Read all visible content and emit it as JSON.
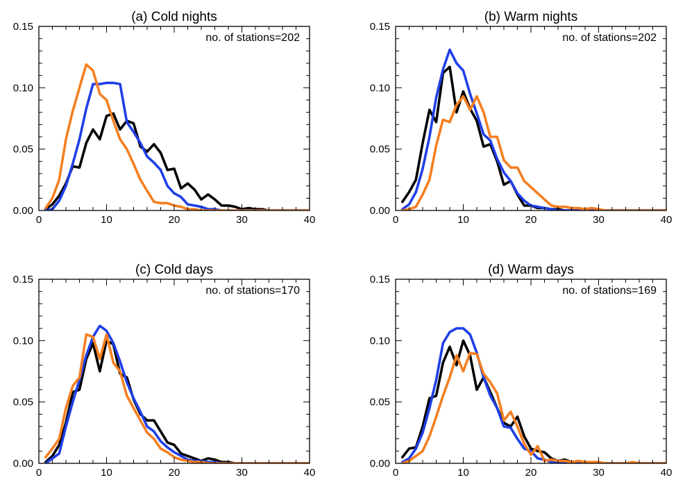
{
  "colors": {
    "black": "#000000",
    "blue": "#1f3fe6",
    "orange": "#f57f20"
  },
  "chart_data": [
    {
      "type": "line",
      "title": "(a) Cold nights",
      "annotation": "no. of stations=202",
      "xlim": [
        0,
        40
      ],
      "ylim": [
        0,
        0.15
      ],
      "xticks": [
        0,
        10,
        20,
        30,
        40
      ],
      "yticks": [
        0.0,
        0.05,
        0.1,
        0.15
      ],
      "ytick_labels": [
        "0.00",
        "0.05",
        "0.10",
        "0.15"
      ],
      "series": [
        {
          "color": "#000000",
          "x": [
            1,
            2,
            3,
            4,
            5,
            6,
            7,
            8,
            9,
            10,
            11,
            12,
            13,
            14,
            15,
            16,
            17,
            18,
            19,
            20,
            21,
            22,
            23,
            24,
            25,
            26,
            27,
            28,
            29,
            30,
            31,
            32,
            33,
            34,
            35,
            36,
            37,
            38,
            39,
            40
          ],
          "y": [
            0.001,
            0.005,
            0.012,
            0.022,
            0.036,
            0.035,
            0.055,
            0.066,
            0.058,
            0.077,
            0.079,
            0.066,
            0.073,
            0.071,
            0.052,
            0.048,
            0.054,
            0.047,
            0.033,
            0.034,
            0.018,
            0.022,
            0.017,
            0.009,
            0.013,
            0.009,
            0.004,
            0.004,
            0.003,
            0.001,
            0.002,
            0.001,
            0.001,
            0,
            0,
            0,
            0,
            0,
            0,
            0
          ]
        },
        {
          "color": "#1f3fe6",
          "x": [
            1,
            2,
            3,
            4,
            5,
            6,
            7,
            8,
            9,
            10,
            11,
            12,
            13,
            14,
            15,
            16,
            17,
            18,
            19,
            20,
            21,
            22,
            23,
            24,
            25,
            26,
            27,
            28,
            29,
            30,
            31,
            32,
            33,
            34,
            35,
            36,
            37,
            38,
            39,
            40
          ],
          "y": [
            0.0,
            0.001,
            0.008,
            0.02,
            0.038,
            0.058,
            0.083,
            0.103,
            0.103,
            0.104,
            0.104,
            0.103,
            0.072,
            0.064,
            0.055,
            0.044,
            0.039,
            0.033,
            0.02,
            0.014,
            0.011,
            0.005,
            0.004,
            0.003,
            0.001,
            0.001,
            0,
            0,
            0,
            0,
            0,
            0,
            0,
            0,
            0,
            0,
            0,
            0,
            0,
            0
          ]
        },
        {
          "color": "#f57f20",
          "x": [
            1,
            2,
            3,
            4,
            5,
            6,
            7,
            8,
            9,
            10,
            11,
            12,
            13,
            14,
            15,
            16,
            17,
            18,
            19,
            20,
            21,
            22,
            23,
            24,
            25,
            26,
            27,
            28,
            29,
            30,
            31,
            32,
            33,
            34,
            35,
            36,
            37,
            38,
            39,
            40
          ],
          "y": [
            0.002,
            0.01,
            0.025,
            0.058,
            0.081,
            0.1,
            0.119,
            0.114,
            0.095,
            0.09,
            0.073,
            0.058,
            0.05,
            0.038,
            0.025,
            0.016,
            0.007,
            0.006,
            0.006,
            0.004,
            0.003,
            0.001,
            0.001,
            0,
            0,
            0,
            0,
            0,
            0,
            0,
            0,
            0,
            0,
            0,
            0,
            0,
            0,
            0,
            0,
            0
          ]
        }
      ]
    },
    {
      "type": "line",
      "title": "(b) Warm nights",
      "annotation": "no. of stations=202",
      "xlim": [
        0,
        40
      ],
      "ylim": [
        0,
        0.15
      ],
      "xticks": [
        0,
        10,
        20,
        30,
        40
      ],
      "yticks": [
        0.0,
        0.05,
        0.1,
        0.15
      ],
      "ytick_labels": [
        "0.00",
        "0.05",
        "0.10",
        "0.15"
      ],
      "series": [
        {
          "color": "#000000",
          "x": [
            1,
            2,
            3,
            4,
            5,
            6,
            7,
            8,
            9,
            10,
            11,
            12,
            13,
            14,
            15,
            16,
            17,
            18,
            19,
            20,
            21,
            22,
            23,
            24,
            25,
            26,
            27,
            28,
            29,
            30,
            31,
            32,
            33,
            34,
            35,
            36,
            37,
            38,
            39,
            40
          ],
          "y": [
            0.007,
            0.015,
            0.025,
            0.055,
            0.082,
            0.072,
            0.112,
            0.117,
            0.08,
            0.097,
            0.083,
            0.073,
            0.052,
            0.054,
            0.04,
            0.021,
            0.024,
            0.013,
            0.004,
            0.004,
            0.002,
            0.002,
            0.001,
            0.001,
            0,
            0,
            0,
            0,
            0,
            0,
            0,
            0,
            0,
            0,
            0,
            0,
            0,
            0,
            0,
            0
          ]
        },
        {
          "color": "#1f3fe6",
          "x": [
            1,
            2,
            3,
            4,
            5,
            6,
            7,
            8,
            9,
            10,
            11,
            12,
            13,
            14,
            15,
            16,
            17,
            18,
            19,
            20,
            21,
            22,
            23,
            24,
            25,
            26,
            27,
            28,
            29,
            30,
            31,
            32,
            33,
            34,
            35,
            36,
            37,
            38,
            39,
            40
          ],
          "y": [
            0.001,
            0.005,
            0.015,
            0.034,
            0.06,
            0.092,
            0.115,
            0.131,
            0.12,
            0.114,
            0.095,
            0.079,
            0.062,
            0.057,
            0.042,
            0.031,
            0.024,
            0.014,
            0.008,
            0.004,
            0.003,
            0.002,
            0.001,
            0,
            0,
            0,
            0,
            0,
            0,
            0,
            0,
            0,
            0,
            0,
            0,
            0,
            0,
            0,
            0,
            0
          ]
        },
        {
          "color": "#f57f20",
          "x": [
            1,
            2,
            3,
            4,
            5,
            6,
            7,
            8,
            9,
            10,
            11,
            12,
            13,
            14,
            15,
            16,
            17,
            18,
            19,
            20,
            21,
            22,
            23,
            24,
            25,
            26,
            27,
            28,
            29,
            30,
            31,
            32,
            33,
            34,
            35,
            36,
            37,
            38,
            39,
            40
          ],
          "y": [
            0.0,
            0.001,
            0.003,
            0.013,
            0.025,
            0.053,
            0.074,
            0.072,
            0.086,
            0.093,
            0.082,
            0.093,
            0.08,
            0.06,
            0.06,
            0.041,
            0.035,
            0.035,
            0.024,
            0.019,
            0.014,
            0.009,
            0.004,
            0.003,
            0.003,
            0.002,
            0.002,
            0.001,
            0.002,
            0.001,
            0,
            0,
            0,
            0,
            0,
            0,
            0,
            0,
            0,
            0
          ]
        }
      ]
    },
    {
      "type": "line",
      "title": "(c) Cold days",
      "annotation": "no. of stations=170",
      "xlim": [
        0,
        40
      ],
      "ylim": [
        0,
        0.15
      ],
      "xticks": [
        0,
        10,
        20,
        30,
        40
      ],
      "yticks": [
        0.0,
        0.05,
        0.1,
        0.15
      ],
      "ytick_labels": [
        "0.00",
        "0.05",
        "0.10",
        "0.15"
      ],
      "series": [
        {
          "color": "#000000",
          "x": [
            1,
            2,
            3,
            4,
            5,
            6,
            7,
            8,
            9,
            10,
            11,
            12,
            13,
            14,
            15,
            16,
            17,
            18,
            19,
            20,
            21,
            22,
            23,
            24,
            25,
            26,
            27,
            28,
            29,
            30,
            31,
            32,
            33,
            34,
            35,
            36,
            37,
            38,
            39,
            40
          ],
          "y": [
            0.001,
            0.006,
            0.015,
            0.033,
            0.058,
            0.06,
            0.085,
            0.098,
            0.075,
            0.1,
            0.097,
            0.073,
            0.07,
            0.052,
            0.04,
            0.035,
            0.035,
            0.026,
            0.017,
            0.015,
            0.008,
            0.006,
            0.004,
            0.002,
            0.004,
            0.003,
            0.001,
            0.001,
            0,
            0,
            0,
            0,
            0,
            0,
            0,
            0,
            0,
            0,
            0,
            0
          ]
        },
        {
          "color": "#1f3fe6",
          "x": [
            1,
            2,
            3,
            4,
            5,
            6,
            7,
            8,
            9,
            10,
            11,
            12,
            13,
            14,
            15,
            16,
            17,
            18,
            19,
            20,
            21,
            22,
            23,
            24,
            25,
            26,
            27,
            28,
            29,
            30,
            31,
            32,
            33,
            34,
            35,
            36,
            37,
            38,
            39,
            40
          ],
          "y": [
            0.0,
            0.004,
            0.008,
            0.03,
            0.05,
            0.068,
            0.088,
            0.103,
            0.112,
            0.108,
            0.098,
            0.083,
            0.066,
            0.053,
            0.042,
            0.03,
            0.026,
            0.018,
            0.013,
            0.009,
            0.006,
            0.003,
            0.002,
            0.002,
            0.001,
            0.001,
            0,
            0,
            0,
            0,
            0,
            0,
            0,
            0,
            0,
            0,
            0,
            0,
            0,
            0
          ]
        },
        {
          "color": "#f57f20",
          "x": [
            1,
            2,
            3,
            4,
            5,
            6,
            7,
            8,
            9,
            10,
            11,
            12,
            13,
            14,
            15,
            16,
            17,
            18,
            19,
            20,
            21,
            22,
            23,
            24,
            25,
            26,
            27,
            28,
            29,
            30,
            31,
            32,
            33,
            34,
            35,
            36,
            37,
            38,
            39,
            40
          ],
          "y": [
            0.005,
            0.012,
            0.02,
            0.045,
            0.063,
            0.07,
            0.105,
            0.103,
            0.085,
            0.105,
            0.082,
            0.075,
            0.055,
            0.045,
            0.035,
            0.025,
            0.02,
            0.012,
            0.009,
            0.005,
            0.003,
            0.002,
            0.001,
            0.001,
            0,
            0,
            0,
            0,
            0,
            0,
            0,
            0,
            0,
            0,
            0,
            0,
            0,
            0,
            0,
            0
          ]
        }
      ]
    },
    {
      "type": "line",
      "title": "(d) Warm days",
      "annotation": "no. of stations=169",
      "xlim": [
        0,
        40
      ],
      "ylim": [
        0,
        0.15
      ],
      "xticks": [
        0,
        10,
        20,
        30,
        40
      ],
      "yticks": [
        0.0,
        0.05,
        0.1,
        0.15
      ],
      "ytick_labels": [
        "0.00",
        "0.05",
        "0.10",
        "0.15"
      ],
      "series": [
        {
          "color": "#000000",
          "x": [
            1,
            2,
            3,
            4,
            5,
            6,
            7,
            8,
            9,
            10,
            11,
            12,
            13,
            14,
            15,
            16,
            17,
            18,
            19,
            20,
            21,
            22,
            23,
            24,
            25,
            26,
            27,
            28,
            29,
            30,
            31,
            32,
            33,
            34,
            35,
            36,
            37,
            38,
            39,
            40
          ],
          "y": [
            0.005,
            0.012,
            0.013,
            0.03,
            0.053,
            0.055,
            0.082,
            0.095,
            0.08,
            0.1,
            0.088,
            0.06,
            0.07,
            0.058,
            0.045,
            0.033,
            0.03,
            0.038,
            0.022,
            0.012,
            0.01,
            0.009,
            0.004,
            0.002,
            0.003,
            0.001,
            0.001,
            0,
            0,
            0,
            0,
            0,
            0,
            0,
            0,
            0,
            0,
            0,
            0,
            0
          ]
        },
        {
          "color": "#1f3fe6",
          "x": [
            1,
            2,
            3,
            4,
            5,
            6,
            7,
            8,
            9,
            10,
            11,
            12,
            13,
            14,
            15,
            16,
            17,
            18,
            19,
            20,
            21,
            22,
            23,
            24,
            25,
            26,
            27,
            28,
            29,
            30,
            31,
            32,
            33,
            34,
            35,
            36,
            37,
            38,
            39,
            40
          ],
          "y": [
            0.001,
            0.004,
            0.012,
            0.025,
            0.045,
            0.068,
            0.098,
            0.107,
            0.11,
            0.11,
            0.105,
            0.09,
            0.07,
            0.055,
            0.045,
            0.03,
            0.029,
            0.02,
            0.012,
            0.01,
            0.004,
            0.003,
            0.001,
            0.001,
            0,
            0,
            0,
            0,
            0,
            0,
            0,
            0,
            0,
            0,
            0,
            0,
            0,
            0,
            0,
            0
          ]
        },
        {
          "color": "#f57f20",
          "x": [
            1,
            2,
            3,
            4,
            5,
            6,
            7,
            8,
            9,
            10,
            11,
            12,
            13,
            14,
            15,
            16,
            17,
            18,
            19,
            20,
            21,
            22,
            23,
            24,
            25,
            26,
            27,
            28,
            29,
            30,
            31,
            32,
            33,
            34,
            35,
            36,
            37,
            38,
            39,
            40
          ],
          "y": [
            0.0,
            0.002,
            0.006,
            0.01,
            0.022,
            0.038,
            0.055,
            0.07,
            0.088,
            0.075,
            0.09,
            0.089,
            0.073,
            0.066,
            0.057,
            0.035,
            0.042,
            0.03,
            0.016,
            0.007,
            0.014,
            0.002,
            0.003,
            0.002,
            0.002,
            0.001,
            0.002,
            0.001,
            0.001,
            0.001,
            0,
            0,
            0,
            0,
            0.001,
            0,
            0,
            0,
            0,
            0
          ]
        }
      ]
    }
  ]
}
